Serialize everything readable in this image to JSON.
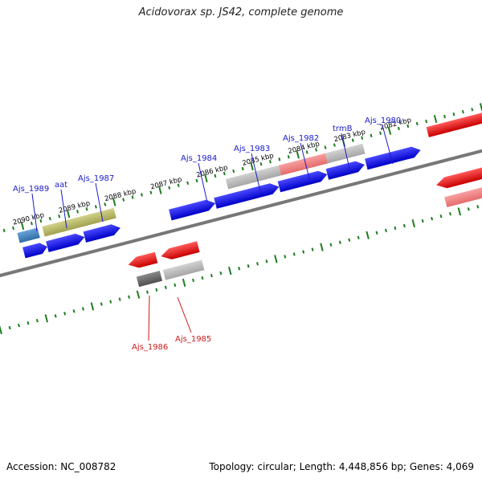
{
  "title": "Acidovorax sp. JS42, complete genome",
  "footer": {
    "accession": "Accession: NC_008782",
    "summary": "Topology: circular; Length: 4,448,856 bp; Genes: 4,069"
  },
  "colors": {
    "forward_label": "#1a1acc",
    "reverse_label": "#cc1a1a",
    "backbone": "#777777",
    "ticks": "#1e7d1e",
    "cds_forward": "#1414e6",
    "cds_reverse": "#e61414",
    "product_grey": "#b3b3b3",
    "product_pink": "#f08080",
    "product_olive": "#b5b560",
    "product_steel": "#4a86c0",
    "product_dark": "#6a6a6a"
  },
  "scale": {
    "tick_labels": [
      "2090 kbp",
      "2089 kbp",
      "2088 kbp",
      "2087 kbp",
      "2086 kbp",
      "2085 kbp",
      "2084 kbp",
      "2083 kbp",
      "2082 kbp"
    ]
  },
  "gene_labels": {
    "forward": [
      "Ajs_1989",
      "aat",
      "Ajs_1987",
      "Ajs_1984",
      "Ajs_1983",
      "Ajs_1982",
      "trmB",
      "Ajs_1980"
    ],
    "reverse": [
      "Ajs_1986",
      "Ajs_1985"
    ]
  }
}
